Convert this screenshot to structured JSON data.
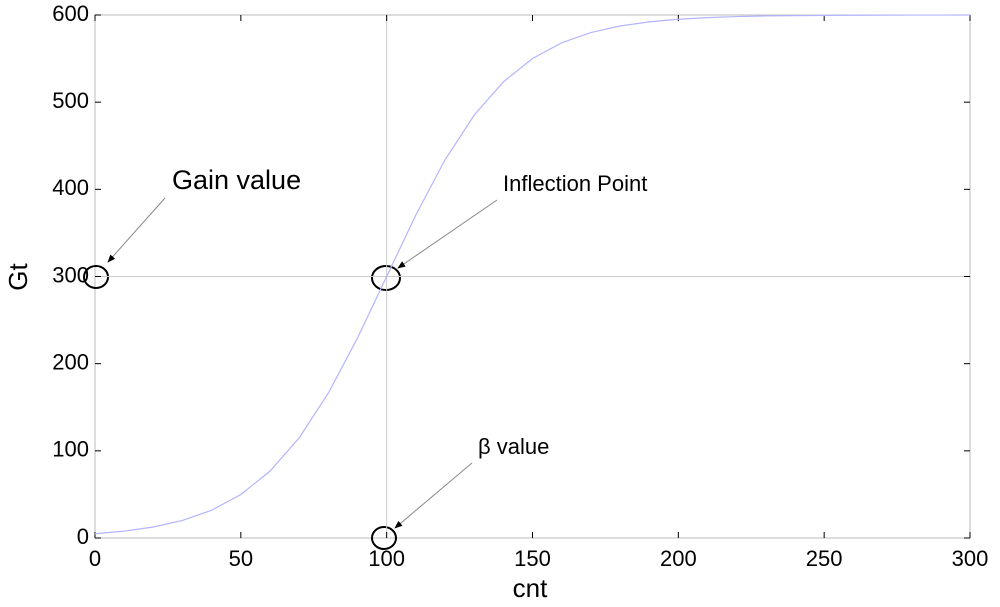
{
  "chart_data": {
    "type": "line",
    "x": [
      0,
      10,
      20,
      30,
      40,
      50,
      60,
      70,
      80,
      90,
      100,
      110,
      120,
      130,
      140,
      150,
      160,
      170,
      180,
      190,
      200,
      210,
      220,
      230,
      240,
      250,
      260,
      270,
      280,
      290,
      300
    ],
    "values": [
      4.9,
      7.9,
      12.6,
      20.1,
      31.9,
      49.9,
      76.7,
      114.9,
      166.2,
      229.4,
      300,
      370.6,
      433.8,
      485.1,
      523.3,
      550.1,
      568.1,
      579.9,
      587.4,
      592.1,
      595.1,
      597.0,
      598.2,
      598.9,
      599.3,
      599.6,
      599.7,
      599.8,
      599.9,
      599.9,
      600.0
    ],
    "color": "#b4b4ff",
    "xlabel": "cnt",
    "ylabel": "Gt",
    "xlim": [
      0,
      300
    ],
    "ylim": [
      0,
      600
    ],
    "xticks": [
      0,
      50,
      100,
      150,
      200,
      250,
      300
    ],
    "yticks": [
      0,
      100,
      200,
      300,
      400,
      500,
      600
    ],
    "vlines": [
      100
    ],
    "hlines": [
      300
    ],
    "annotations": [
      "Gain value",
      "Inflection Point",
      "β value"
    ]
  }
}
